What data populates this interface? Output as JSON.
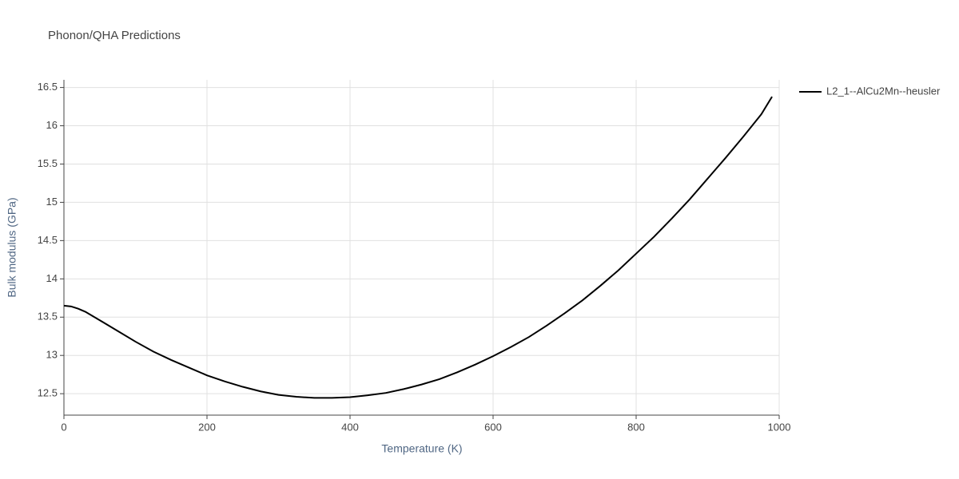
{
  "chart_data": {
    "type": "line",
    "title": "Phonon/QHA Predictions",
    "xlabel": "Temperature (K)",
    "ylabel": "Bulk modulus (GPa)",
    "x": [
      0,
      10,
      20,
      30,
      50,
      75,
      100,
      125,
      150,
      175,
      200,
      225,
      250,
      275,
      300,
      325,
      350,
      375,
      400,
      425,
      450,
      475,
      500,
      525,
      550,
      575,
      600,
      625,
      650,
      675,
      700,
      725,
      750,
      775,
      800,
      825,
      850,
      875,
      900,
      925,
      950,
      975,
      990
    ],
    "series": [
      {
        "name": "L2_1--AlCu2Mn--heusler",
        "color": "#000000",
        "values": [
          13.65,
          13.64,
          13.61,
          13.57,
          13.46,
          13.32,
          13.18,
          13.05,
          12.94,
          12.84,
          12.74,
          12.66,
          12.59,
          12.53,
          12.485,
          12.46,
          12.445,
          12.445,
          12.455,
          12.48,
          12.51,
          12.56,
          12.62,
          12.69,
          12.78,
          12.88,
          12.99,
          13.11,
          13.24,
          13.39,
          13.55,
          13.72,
          13.91,
          14.11,
          14.33,
          14.55,
          14.79,
          15.04,
          15.31,
          15.58,
          15.86,
          16.15,
          16.38
        ]
      }
    ],
    "xlim": [
      0,
      1000
    ],
    "xticks": [
      0,
      200,
      400,
      600,
      800,
      1000
    ],
    "ylim": [
      12.22,
      16.6
    ],
    "yticks": [
      12.5,
      13,
      13.5,
      14,
      14.5,
      15,
      15.5,
      16,
      16.5
    ],
    "grid": true,
    "legend": "right"
  }
}
